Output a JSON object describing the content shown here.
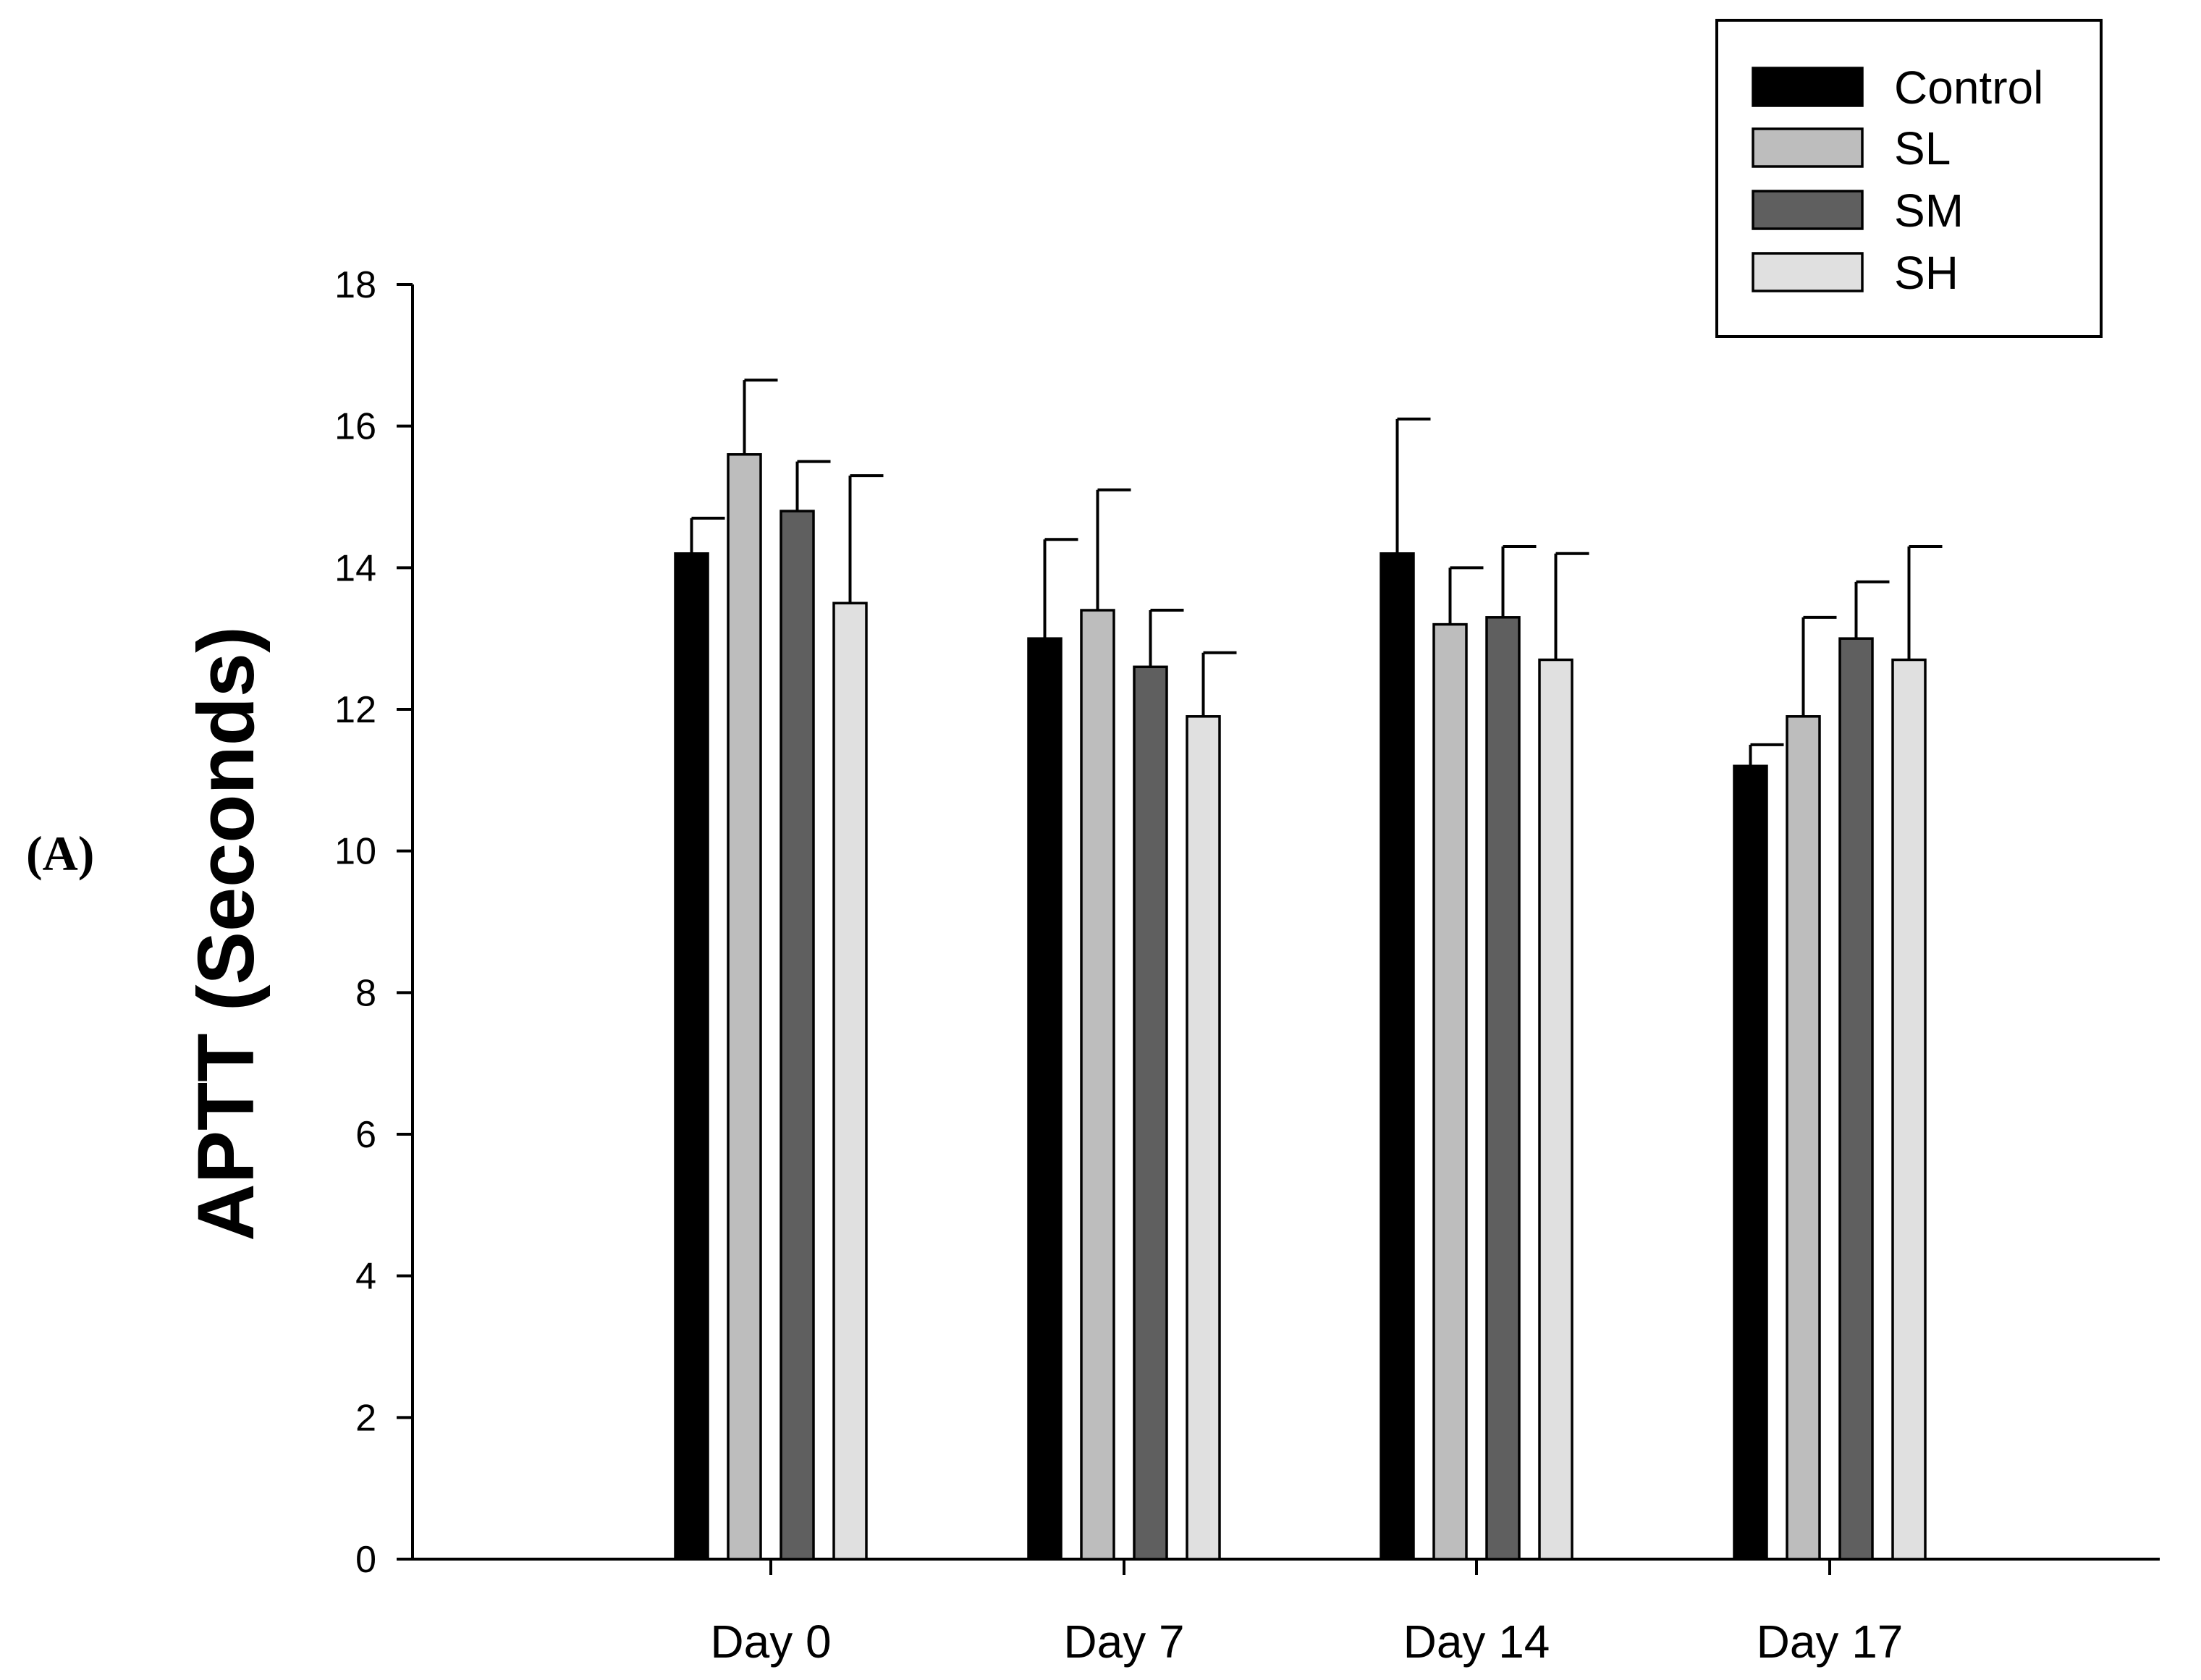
{
  "panel_label": "(A)",
  "chart_data": {
    "type": "bar",
    "title": "",
    "xlabel": "",
    "ylabel": "APTT (Seconds)",
    "ylim": [
      0,
      18
    ],
    "yticks": [
      0,
      2,
      4,
      6,
      8,
      10,
      12,
      14,
      16,
      18
    ],
    "ytick_labels": [
      "0",
      "2",
      "4",
      "6",
      "8",
      "10",
      "12",
      "14",
      "16",
      "18"
    ],
    "grid": false,
    "legend_position": "top-right",
    "categories": [
      "Day 0",
      "Day 7",
      "Day 14",
      "Day 17"
    ],
    "series": [
      {
        "name": "Control",
        "color": "#000000",
        "values": [
          14.2,
          13.0,
          14.2,
          11.2
        ],
        "errors": [
          0.5,
          1.4,
          1.9,
          0.3
        ]
      },
      {
        "name": "SL",
        "color": "#bdbdbd",
        "values": [
          15.6,
          13.4,
          13.2,
          11.9
        ],
        "errors": [
          1.05,
          1.7,
          0.8,
          1.4
        ]
      },
      {
        "name": "SM",
        "color": "#5f5f5f",
        "values": [
          14.8,
          12.6,
          13.3,
          13.0
        ],
        "errors": [
          0.7,
          0.8,
          1.0,
          0.8
        ]
      },
      {
        "name": "SH",
        "color": "#e0e0e0",
        "values": [
          13.5,
          11.9,
          12.7,
          12.7
        ],
        "errors": [
          1.8,
          0.9,
          1.5,
          1.6
        ]
      }
    ]
  }
}
